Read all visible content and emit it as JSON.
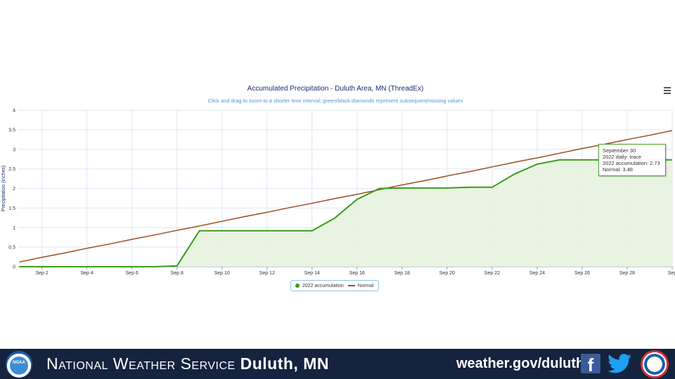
{
  "chart": {
    "title": "Accumulated Precipitation - Duluth Area, MN (ThreadEx)",
    "subtitle": "Click and drag to zoom to a shorter time interval; green/black diamonds represent subsequent/missing values",
    "ylabel": "Precipitation (inches)"
  },
  "chart_data": {
    "type": "area",
    "title": "Accumulated Precipitation - Duluth Area, MN (ThreadEx)",
    "subtitle": "Click and drag to zoom to a shorter time interval; green/black diamonds represent subsequent/missing values",
    "ylabel": "Precipitation (inches)",
    "xlabel": "",
    "ylim": [
      0,
      4
    ],
    "yticks": [
      "0",
      "0.5",
      "1",
      "1.5",
      "2",
      "2.5",
      "3",
      "3.5",
      "4"
    ],
    "xticks": [
      "Sep 2",
      "Sep 4",
      "Sep 6",
      "Sep 8",
      "Sep 10",
      "Sep 12",
      "Sep 14",
      "Sep 16",
      "Sep 18",
      "Sep 20",
      "Sep 22",
      "Sep 24",
      "Sep 26",
      "Sep 28",
      "Sep"
    ],
    "grid": true,
    "x": [
      1,
      2,
      3,
      4,
      5,
      6,
      7,
      8,
      9,
      10,
      11,
      12,
      13,
      14,
      15,
      16,
      17,
      18,
      19,
      20,
      21,
      22,
      23,
      24,
      25,
      26,
      27,
      28,
      29,
      30
    ],
    "series": [
      {
        "name": "2022 accumulation",
        "color": "#3a9a1f",
        "values": [
          0,
          0,
          0,
          0,
          0,
          0,
          0,
          0.02,
          0.92,
          0.92,
          0.92,
          0.92,
          0.92,
          0.92,
          1.24,
          1.72,
          2.0,
          2.01,
          2.01,
          2.01,
          2.03,
          2.03,
          2.37,
          2.62,
          2.73,
          2.73,
          2.73,
          2.73,
          2.73,
          2.73
        ]
      },
      {
        "name": "Normal",
        "color": "#9b4d1e",
        "values": [
          0.12,
          0.24,
          0.35,
          0.47,
          0.58,
          0.7,
          0.81,
          0.93,
          1.04,
          1.16,
          1.28,
          1.39,
          1.51,
          1.62,
          1.74,
          1.85,
          1.97,
          2.09,
          2.2,
          2.32,
          2.43,
          2.55,
          2.67,
          2.78,
          2.9,
          3.02,
          3.13,
          3.25,
          3.36,
          3.48
        ]
      }
    ],
    "legend_position": "bottom-center",
    "tooltip": {
      "header": "September 30",
      "lines": [
        "2022 daily: trace",
        "2022 accumulation: 2.73",
        "Normal: 3.48"
      ]
    }
  },
  "legend": {
    "item1": "2022 accumulation",
    "item2": "Normal"
  },
  "footer": {
    "org_part1": "National Weather Service",
    "org_part2": "Duluth, MN",
    "url": "weather.gov/duluth",
    "noaa_text": "NOAA"
  },
  "colors": {
    "footer_bg": "#15233f",
    "series_2022": "#3a9a1f",
    "series_normal": "#9b4d1e"
  }
}
